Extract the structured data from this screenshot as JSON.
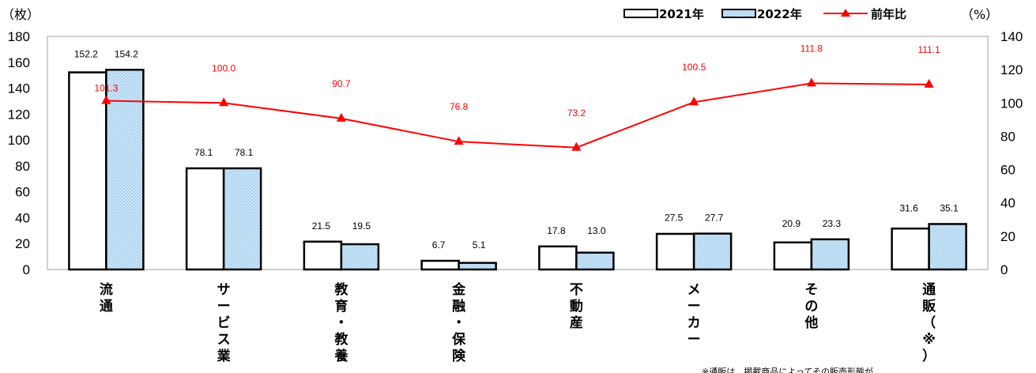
{
  "chart_data": {
    "type": "bar",
    "title": "",
    "left_axis_unit": "（枚）",
    "right_axis_unit": "（%）",
    "ylim": [
      0,
      180
    ],
    "y2lim": [
      0,
      140
    ],
    "yticks": [
      "0",
      "20",
      "40",
      "60",
      "80",
      "100",
      "120",
      "140",
      "160",
      "180"
    ],
    "y2ticks": [
      "0",
      "20",
      "40",
      "60",
      "80",
      "100",
      "120",
      "140"
    ],
    "categories": [
      "流通",
      "サービス業",
      "教育・教養",
      "金融・保険",
      "不動産",
      "メーカー",
      "その他",
      "通販（※）"
    ],
    "categories_vertical": [
      "流通",
      "サ|ー|ビ|ス|業",
      "教|育|・|教|養",
      "金|融|・|保|険",
      "不|動|産",
      "メ|ー|カ|ー",
      "そ|の|他",
      "通|販|（|※|）"
    ],
    "series": [
      {
        "name": "2021年",
        "type": "bar",
        "axis": "left",
        "values": [
          152.2,
          78.1,
          21.5,
          6.7,
          17.8,
          27.5,
          20.9,
          31.6
        ],
        "labels": [
          "152.2",
          "78.1",
          "21.5",
          "6.7",
          "17.8",
          "27.5",
          "20.9",
          "31.6"
        ],
        "fill": "#ffffff",
        "stroke": "#000000"
      },
      {
        "name": "2022年",
        "type": "bar",
        "axis": "left",
        "values": [
          154.2,
          78.1,
          19.5,
          5.1,
          13.0,
          27.7,
          23.3,
          35.1
        ],
        "labels": [
          "154.2",
          "78.1",
          "19.5",
          "5.1",
          "13.0",
          "27.7",
          "23.3",
          "35.1"
        ],
        "fill": "#a9d3f2",
        "stroke": "#000000"
      },
      {
        "name": "前年比",
        "type": "line",
        "axis": "right",
        "values": [
          101.3,
          100.0,
          90.7,
          76.8,
          73.2,
          100.5,
          111.8,
          111.1
        ],
        "labels": [
          "101.3",
          "100.0",
          "90.7",
          "76.8",
          "73.2",
          "100.5",
          "111.8",
          "111.1"
        ],
        "color": "#ff0000"
      }
    ],
    "legend_position": "top-right",
    "grid": false,
    "footnote": "※通販は、掲載商品によってその販売形態が"
  }
}
